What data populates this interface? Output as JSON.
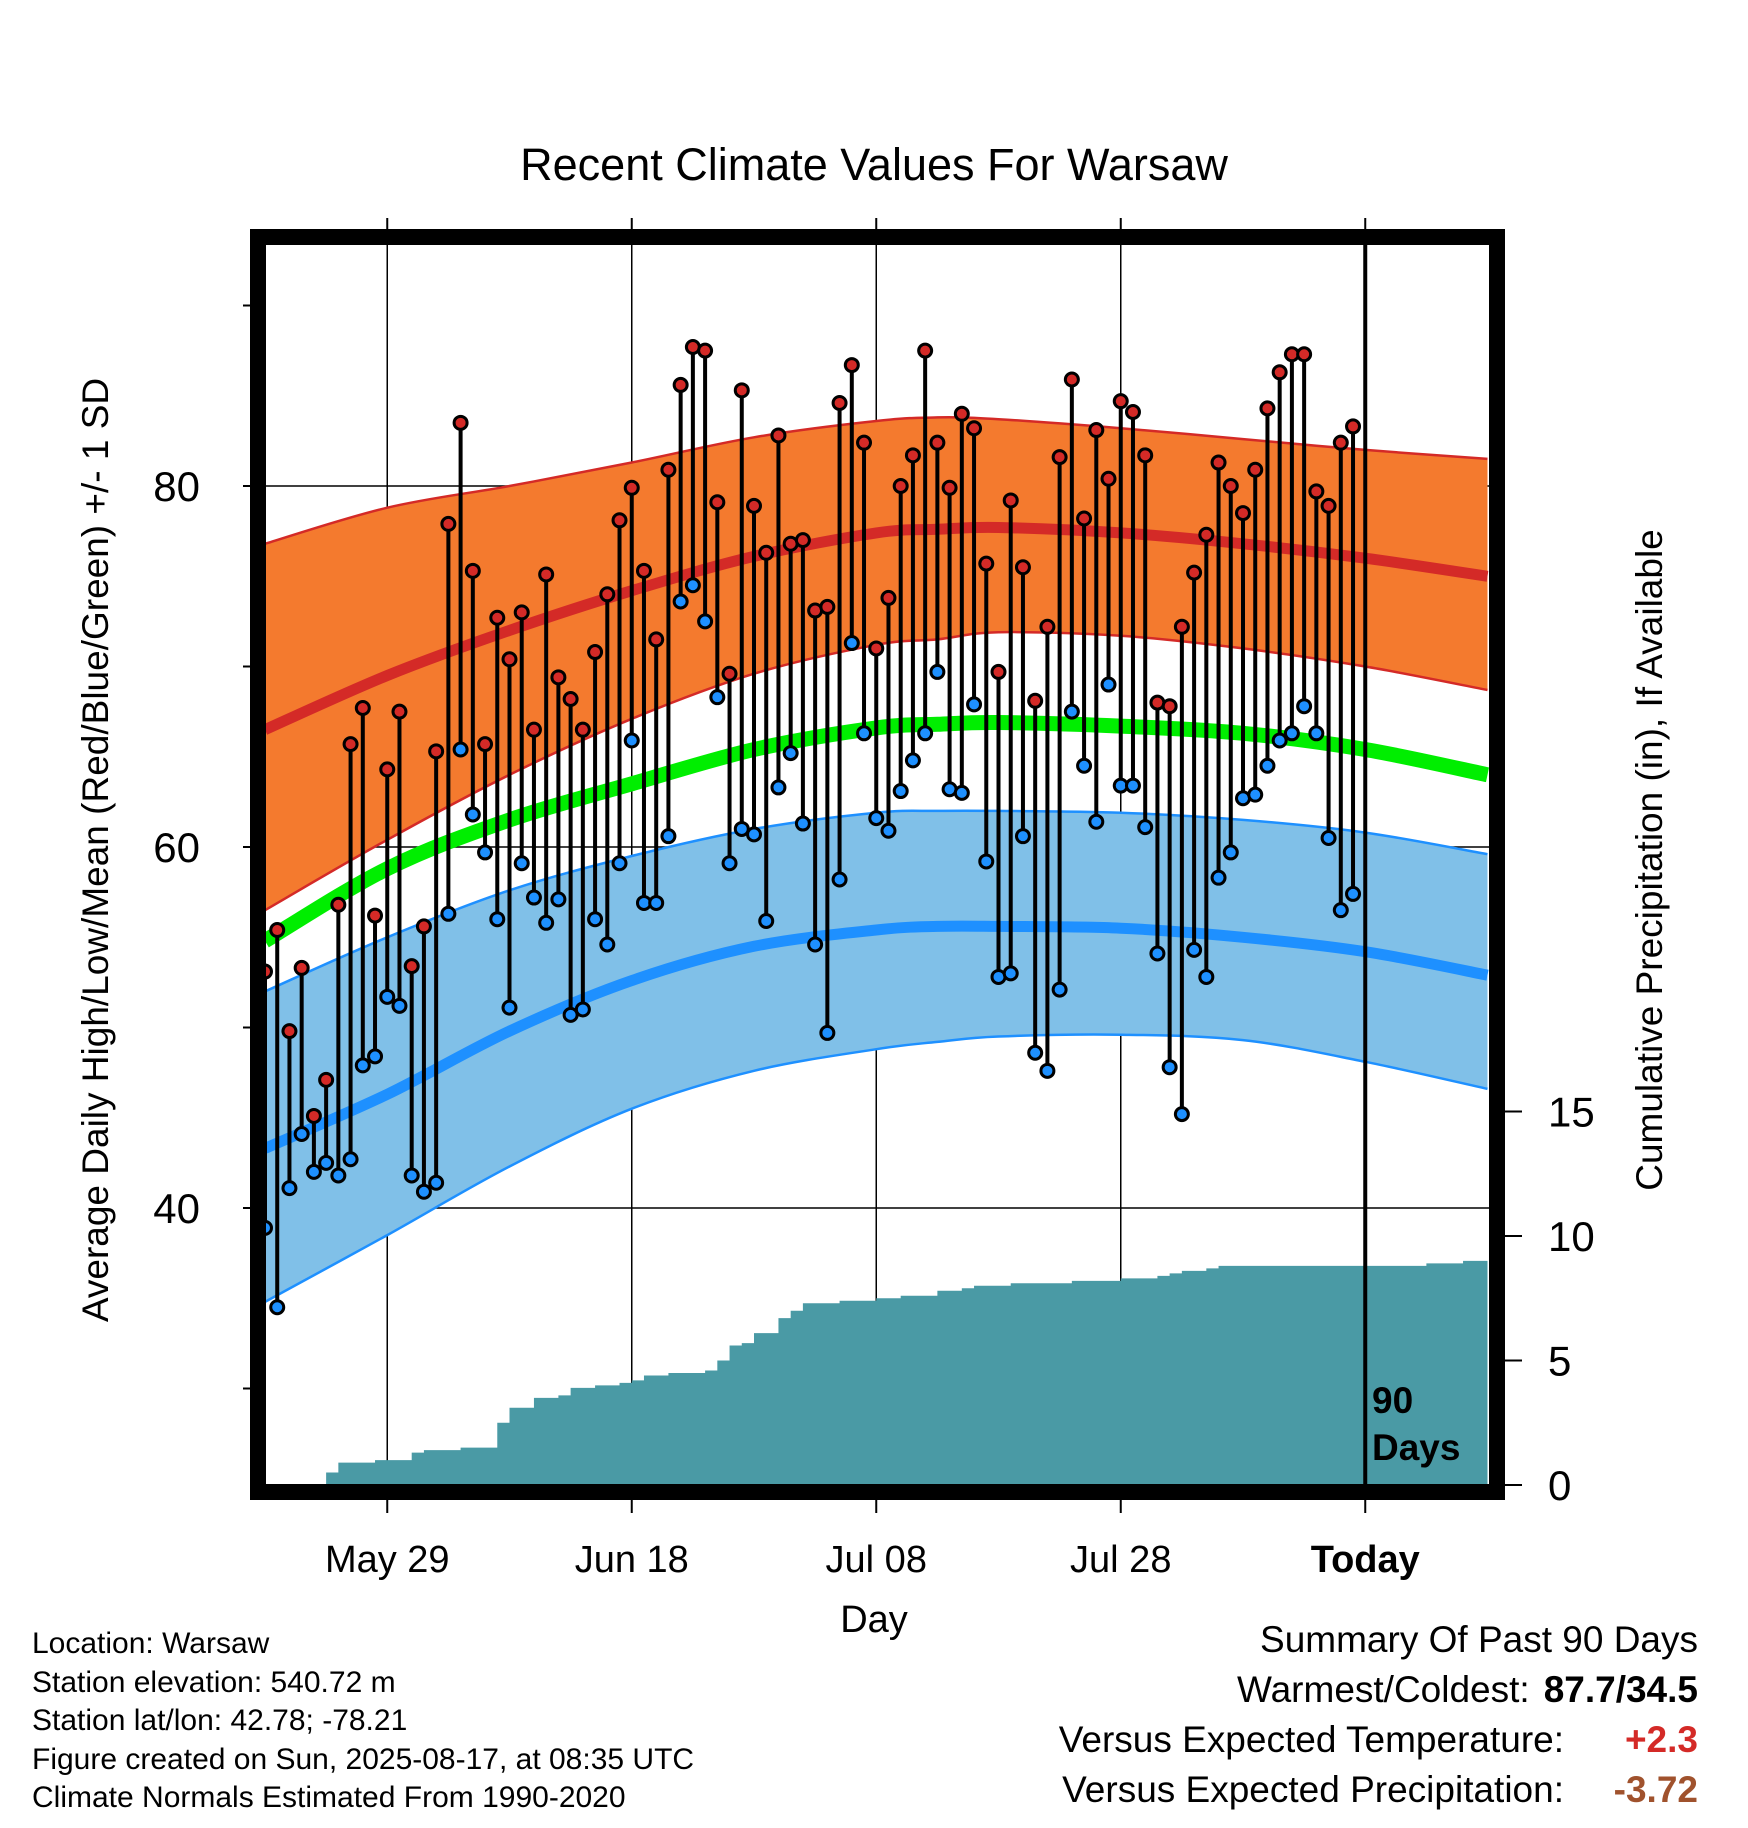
{
  "chart_data": {
    "type": "line",
    "title": "Recent Climate Values For Warsaw",
    "xlabel": "Day",
    "ylabel": "Average Daily High/Low/Mean (Red/Blue/Green) +/- 1 SD",
    "y2label": "Cumulative Precipitation (in), If Available",
    "x_tick_labels": [
      "May 29",
      "Jun 18",
      "Jul 08",
      "Jul 28",
      "Today"
    ],
    "x_tick_days": [
      10,
      30,
      50,
      70,
      90
    ],
    "xlim": [
      0,
      100
    ],
    "ylim": [
      24,
      90
    ],
    "y_ticks": [
      40,
      60,
      80
    ],
    "y2lim": [
      0,
      22.6
    ],
    "y2_ticks": [
      0,
      5,
      10,
      15
    ],
    "today_day": 90,
    "today_marker_label": [
      "90",
      "Days"
    ],
    "grid": true,
    "colors": {
      "high_band": "#f47a2e",
      "high_line": "#d42a27",
      "low_band": "#80c0e8",
      "low_line": "#1e90ff",
      "mean_line": "#00ee00",
      "precip": "#4a9aa5",
      "high_point": "#d42a27",
      "low_point": "#1e90ff"
    },
    "normals": {
      "days": [
        0,
        10,
        20,
        30,
        40,
        50,
        55,
        60,
        70,
        80,
        90,
        100
      ],
      "high_mean": [
        66.5,
        69.5,
        72.0,
        74.2,
        76.1,
        77.4,
        77.6,
        77.7,
        77.4,
        76.8,
        76.0,
        75.0
      ],
      "high_upper": [
        76.8,
        78.8,
        80.0,
        81.3,
        82.7,
        83.6,
        83.8,
        83.7,
        83.2,
        82.6,
        82.0,
        81.5
      ],
      "high_lower": [
        56.5,
        60.4,
        64.0,
        67.1,
        69.6,
        71.2,
        71.5,
        71.9,
        71.7,
        71.0,
        70.0,
        68.7
      ],
      "mean": [
        54.8,
        58.8,
        61.5,
        63.5,
        65.4,
        66.6,
        66.8,
        66.9,
        66.7,
        66.3,
        65.4,
        64.0
      ],
      "low_mean": [
        43.3,
        46.3,
        49.8,
        52.6,
        54.5,
        55.4,
        55.6,
        55.6,
        55.5,
        55.0,
        54.2,
        52.9
      ],
      "low_upper": [
        52.0,
        55.0,
        57.6,
        59.5,
        61.0,
        61.9,
        62.0,
        62.0,
        61.9,
        61.5,
        60.8,
        59.6
      ],
      "low_lower": [
        34.8,
        38.5,
        42.3,
        45.5,
        47.6,
        48.8,
        49.2,
        49.5,
        49.6,
        49.3,
        48.1,
        46.6
      ]
    },
    "series": [
      {
        "name": "High",
        "values": [
          53.1,
          55.4,
          49.8,
          53.3,
          45.1,
          47.1,
          56.8,
          65.7,
          67.7,
          56.2,
          64.3,
          67.5,
          53.4,
          55.6,
          65.3,
          77.9,
          83.5,
          75.3,
          65.7,
          72.7,
          70.4,
          73.0,
          66.5,
          75.1,
          69.4,
          68.2,
          66.5,
          70.8,
          74.0,
          78.1,
          79.9,
          75.3,
          71.5,
          80.9,
          85.6,
          87.7,
          87.5,
          79.1,
          69.6,
          85.3,
          78.9,
          76.3,
          82.8,
          76.8,
          77.0,
          73.1,
          73.3,
          84.6,
          86.7,
          82.4,
          71.0,
          73.8,
          80.0,
          81.7,
          87.5,
          82.4,
          79.9,
          84.0,
          83.2,
          75.7,
          69.7,
          79.2,
          75.5,
          68.1,
          72.2,
          81.6,
          85.9,
          78.2,
          83.1,
          80.4,
          84.7,
          84.1,
          81.7,
          68.0,
          67.8,
          72.2,
          75.2,
          77.3,
          81.3,
          80.0,
          78.5,
          80.9,
          84.3,
          86.3,
          87.3,
          87.3,
          79.7,
          78.9,
          82.4,
          83.3
        ]
      },
      {
        "name": "Low",
        "values": [
          38.9,
          34.5,
          41.1,
          44.1,
          42.0,
          42.5,
          41.8,
          42.7,
          47.9,
          48.4,
          51.7,
          51.2,
          41.8,
          40.9,
          41.4,
          56.3,
          65.4,
          61.8,
          59.7,
          56.0,
          51.1,
          59.1,
          57.2,
          55.8,
          57.1,
          50.7,
          51.0,
          56.0,
          54.6,
          59.1,
          65.9,
          56.9,
          56.9,
          60.6,
          73.6,
          74.5,
          72.5,
          68.3,
          59.1,
          61.0,
          60.7,
          55.9,
          63.3,
          65.2,
          61.3,
          54.6,
          49.7,
          58.2,
          71.3,
          66.3,
          61.6,
          60.9,
          63.1,
          64.8,
          66.3,
          69.7,
          63.2,
          63.0,
          67.9,
          59.2,
          52.8,
          53.0,
          60.6,
          48.6,
          47.6,
          52.1,
          67.5,
          64.5,
          61.4,
          69.0,
          63.4,
          63.4,
          61.1,
          54.1,
          47.8,
          45.2,
          54.3,
          52.8,
          58.3,
          59.7,
          62.7,
          62.9,
          64.5,
          65.9,
          66.3,
          67.8,
          66.3,
          60.5,
          56.5,
          57.4
        ]
      }
    ],
    "precip_cumulative": {
      "days": [
        2,
        5,
        6,
        8,
        9,
        12,
        13,
        16,
        17,
        18,
        19,
        20,
        22,
        23,
        24,
        25,
        26,
        27,
        28,
        29,
        30,
        31,
        32,
        33,
        34,
        36,
        37,
        38,
        39,
        40,
        42,
        43,
        44,
        45,
        46,
        47,
        48,
        49,
        50,
        51,
        52,
        53,
        54,
        55,
        56,
        57,
        58,
        59,
        60,
        61,
        62,
        63,
        64,
        65,
        66,
        67,
        68,
        69,
        70,
        71,
        72,
        73,
        74,
        75,
        76,
        77,
        78,
        79,
        80,
        81,
        82,
        83,
        84,
        85,
        86,
        87,
        88,
        89,
        90,
        91,
        92,
        93,
        94,
        95,
        96,
        97,
        98,
        99,
        100
      ],
      "values": [
        0.0,
        0.5,
        0.9,
        0.9,
        1.0,
        1.3,
        1.4,
        1.5,
        1.5,
        1.5,
        2.5,
        3.1,
        3.5,
        3.5,
        3.6,
        3.9,
        3.9,
        4.0,
        4.0,
        4.1,
        4.2,
        4.4,
        4.4,
        4.5,
        4.5,
        4.6,
        5.0,
        5.6,
        5.7,
        6.1,
        6.7,
        7.0,
        7.3,
        7.3,
        7.3,
        7.4,
        7.4,
        7.4,
        7.5,
        7.5,
        7.6,
        7.6,
        7.6,
        7.8,
        7.8,
        7.9,
        8.0,
        8.0,
        8.0,
        8.1,
        8.1,
        8.1,
        8.1,
        8.1,
        8.2,
        8.2,
        8.2,
        8.2,
        8.3,
        8.3,
        8.3,
        8.4,
        8.5,
        8.6,
        8.6,
        8.7,
        8.8,
        8.8,
        8.8,
        8.8,
        8.8,
        8.8,
        8.8,
        8.8,
        8.8,
        8.8,
        8.8,
        8.8,
        8.8,
        8.8,
        8.8,
        8.8,
        8.8,
        8.9,
        8.9,
        8.9,
        9.0,
        9.0,
        9.1
      ]
    }
  },
  "info": {
    "location": "Location: Warsaw",
    "elevation": "Station elevation: 540.72 m",
    "latlon": "Station lat/lon: 42.78; -78.21",
    "created": "Figure created on Sun, 2025-08-17, at 08:35 UTC",
    "normals": "Climate Normals Estimated From 1990-2020"
  },
  "summary": {
    "heading": "Summary Of Past 90 Days",
    "warmest_label": "Warmest/Coldest:",
    "warmest_value": "87.7/34.5",
    "temp_label": "Versus Expected Temperature:",
    "temp_value": "+2.3",
    "temp_color": "#d42a27",
    "precip_label": "Versus Expected Precipitation:",
    "precip_value": "-3.72",
    "precip_color": "#a0522d"
  }
}
